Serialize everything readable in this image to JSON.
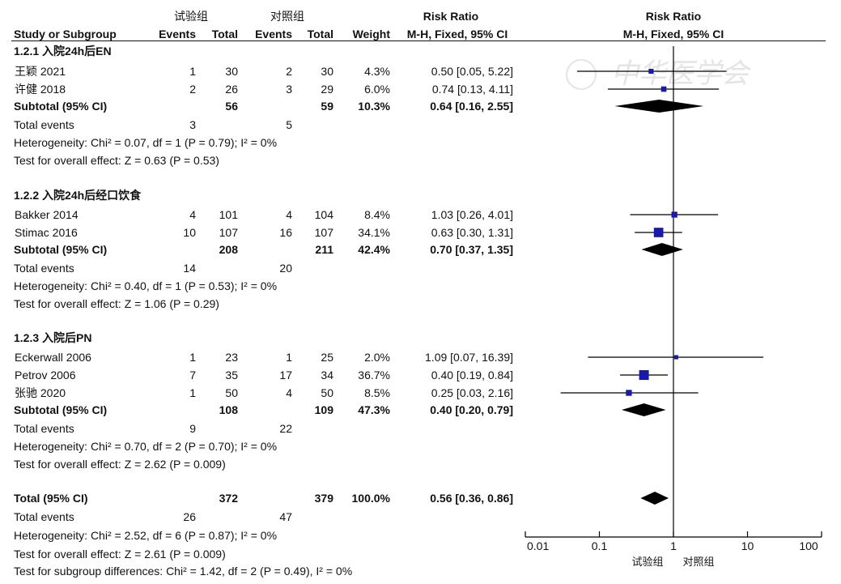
{
  "headers": {
    "experimental": "试验组",
    "control": "对照组",
    "risk_ratio_left": "Risk Ratio",
    "risk_ratio_right": "Risk Ratio",
    "study": "Study or Subgroup",
    "events_exp": "Events",
    "total_exp": "Total",
    "events_ctl": "Events",
    "total_ctl": "Total",
    "weight": "Weight",
    "method_left": "M-H, Fixed, 95% CI",
    "method_right": "M-H, Fixed, 95% CI"
  },
  "groups": [
    {
      "title": "1.2.1 入院24h后EN",
      "studies": [
        {
          "name": "王颖 2021",
          "e1": "1",
          "t1": "30",
          "e2": "2",
          "t2": "30",
          "weight": "4.3%",
          "ci": "0.50 [0.05, 5.22]"
        },
        {
          "name": "许健 2018",
          "e1": "2",
          "t1": "26",
          "e2": "3",
          "t2": "29",
          "weight": "6.0%",
          "ci": "0.74 [0.13, 4.11]"
        }
      ],
      "subtotal": {
        "label": "Subtotal (95% CI)",
        "t1": "56",
        "t2": "59",
        "weight": "10.3%",
        "ci": "0.64 [0.16, 2.55]"
      },
      "total_events": {
        "label": "Total events",
        "e1": "3",
        "e2": "5"
      },
      "heterogeneity": "Heterogeneity: Chi² = 0.07, df = 1 (P = 0.79); I² = 0%",
      "overall": "Test for overall effect: Z = 0.63 (P = 0.53)"
    },
    {
      "title": "1.2.2 入院24h后经口饮食",
      "studies": [
        {
          "name": "Bakker 2014",
          "e1": "4",
          "t1": "101",
          "e2": "4",
          "t2": "104",
          "weight": "8.4%",
          "ci": "1.03 [0.26, 4.01]"
        },
        {
          "name": "Stimac 2016",
          "e1": "10",
          "t1": "107",
          "e2": "16",
          "t2": "107",
          "weight": "34.1%",
          "ci": "0.63 [0.30, 1.31]"
        }
      ],
      "subtotal": {
        "label": "Subtotal (95% CI)",
        "t1": "208",
        "t2": "211",
        "weight": "42.4%",
        "ci": "0.70 [0.37, 1.35]"
      },
      "total_events": {
        "label": "Total events",
        "e1": "14",
        "e2": "20"
      },
      "heterogeneity": "Heterogeneity: Chi² = 0.40, df = 1 (P = 0.53); I² = 0%",
      "overall": "Test for overall effect: Z = 1.06 (P = 0.29)"
    },
    {
      "title": "1.2.3 入院后PN",
      "studies": [
        {
          "name": "Eckerwall 2006",
          "e1": "1",
          "t1": "23",
          "e2": "1",
          "t2": "25",
          "weight": "2.0%",
          "ci": "1.09 [0.07, 16.39]"
        },
        {
          "name": "Petrov 2006",
          "e1": "7",
          "t1": "35",
          "e2": "17",
          "t2": "34",
          "weight": "36.7%",
          "ci": "0.40 [0.19, 0.84]"
        },
        {
          "name": "张驰 2020",
          "e1": "1",
          "t1": "50",
          "e2": "4",
          "t2": "50",
          "weight": "8.5%",
          "ci": "0.25 [0.03, 2.16]"
        }
      ],
      "subtotal": {
        "label": "Subtotal (95% CI)",
        "t1": "108",
        "t2": "109",
        "weight": "47.3%",
        "ci": "0.40 [0.20, 0.79]"
      },
      "total_events": {
        "label": "Total events",
        "e1": "9",
        "e2": "22"
      },
      "heterogeneity": "Heterogeneity: Chi² = 0.70, df = 2 (P = 0.70); I² = 0%",
      "overall": "Test for overall effect: Z = 2.62 (P = 0.009)"
    }
  ],
  "total": {
    "label": "Total (95% CI)",
    "t1": "372",
    "t2": "379",
    "weight": "100.0%",
    "ci": "0.56 [0.36, 0.86]",
    "events_label": "Total events",
    "e1": "26",
    "e2": "47",
    "heterogeneity": "Heterogeneity: Chi² = 2.52, df = 6 (P = 0.87); I² = 0%",
    "overall": "Test for overall effect: Z = 2.61 (P = 0.009)",
    "subgroup": "Test for subgroup differences: Chi² = 1.42, df = 2 (P = 0.49), I² = 0%"
  },
  "axis_footer": {
    "favours_exp": "试验组",
    "favours_ctl": "对照组"
  },
  "watermark": "中华医学会",
  "colors": {
    "square": "#1a1aa8",
    "diamond": "#000000",
    "line": "#000000",
    "text": "#111111",
    "watermark": "#e4e4e4"
  },
  "chart_data": {
    "type": "forest",
    "scale": "log",
    "xlim": [
      0.01,
      100
    ],
    "ticks": [
      0.01,
      0.1,
      1,
      10,
      100
    ],
    "tick_labels": [
      "0.01",
      "0.1",
      "1",
      "10",
      "100"
    ],
    "null_line": 1,
    "studies": [
      {
        "name": "王颖 2021",
        "rr": 0.5,
        "lo": 0.05,
        "hi": 5.22,
        "weight": 4.3
      },
      {
        "name": "许健 2018",
        "rr": 0.74,
        "lo": 0.13,
        "hi": 4.11,
        "weight": 6.0
      },
      {
        "name": "Bakker 2014",
        "rr": 1.03,
        "lo": 0.26,
        "hi": 4.01,
        "weight": 8.4
      },
      {
        "name": "Stimac 2016",
        "rr": 0.63,
        "lo": 0.3,
        "hi": 1.31,
        "weight": 34.1
      },
      {
        "name": "Eckerwall 2006",
        "rr": 1.09,
        "lo": 0.07,
        "hi": 16.39,
        "weight": 2.0
      },
      {
        "name": "Petrov 2006",
        "rr": 0.4,
        "lo": 0.19,
        "hi": 0.84,
        "weight": 36.7
      },
      {
        "name": "张驰 2020",
        "rr": 0.25,
        "lo": 0.03,
        "hi": 2.16,
        "weight": 8.5
      }
    ],
    "summaries": [
      {
        "name": "Subtotal 1.2.1",
        "rr": 0.64,
        "lo": 0.16,
        "hi": 2.55
      },
      {
        "name": "Subtotal 1.2.2",
        "rr": 0.7,
        "lo": 0.37,
        "hi": 1.35
      },
      {
        "name": "Subtotal 1.2.3",
        "rr": 0.4,
        "lo": 0.2,
        "hi": 0.79
      },
      {
        "name": "Total",
        "rr": 0.56,
        "lo": 0.36,
        "hi": 0.86
      }
    ]
  }
}
